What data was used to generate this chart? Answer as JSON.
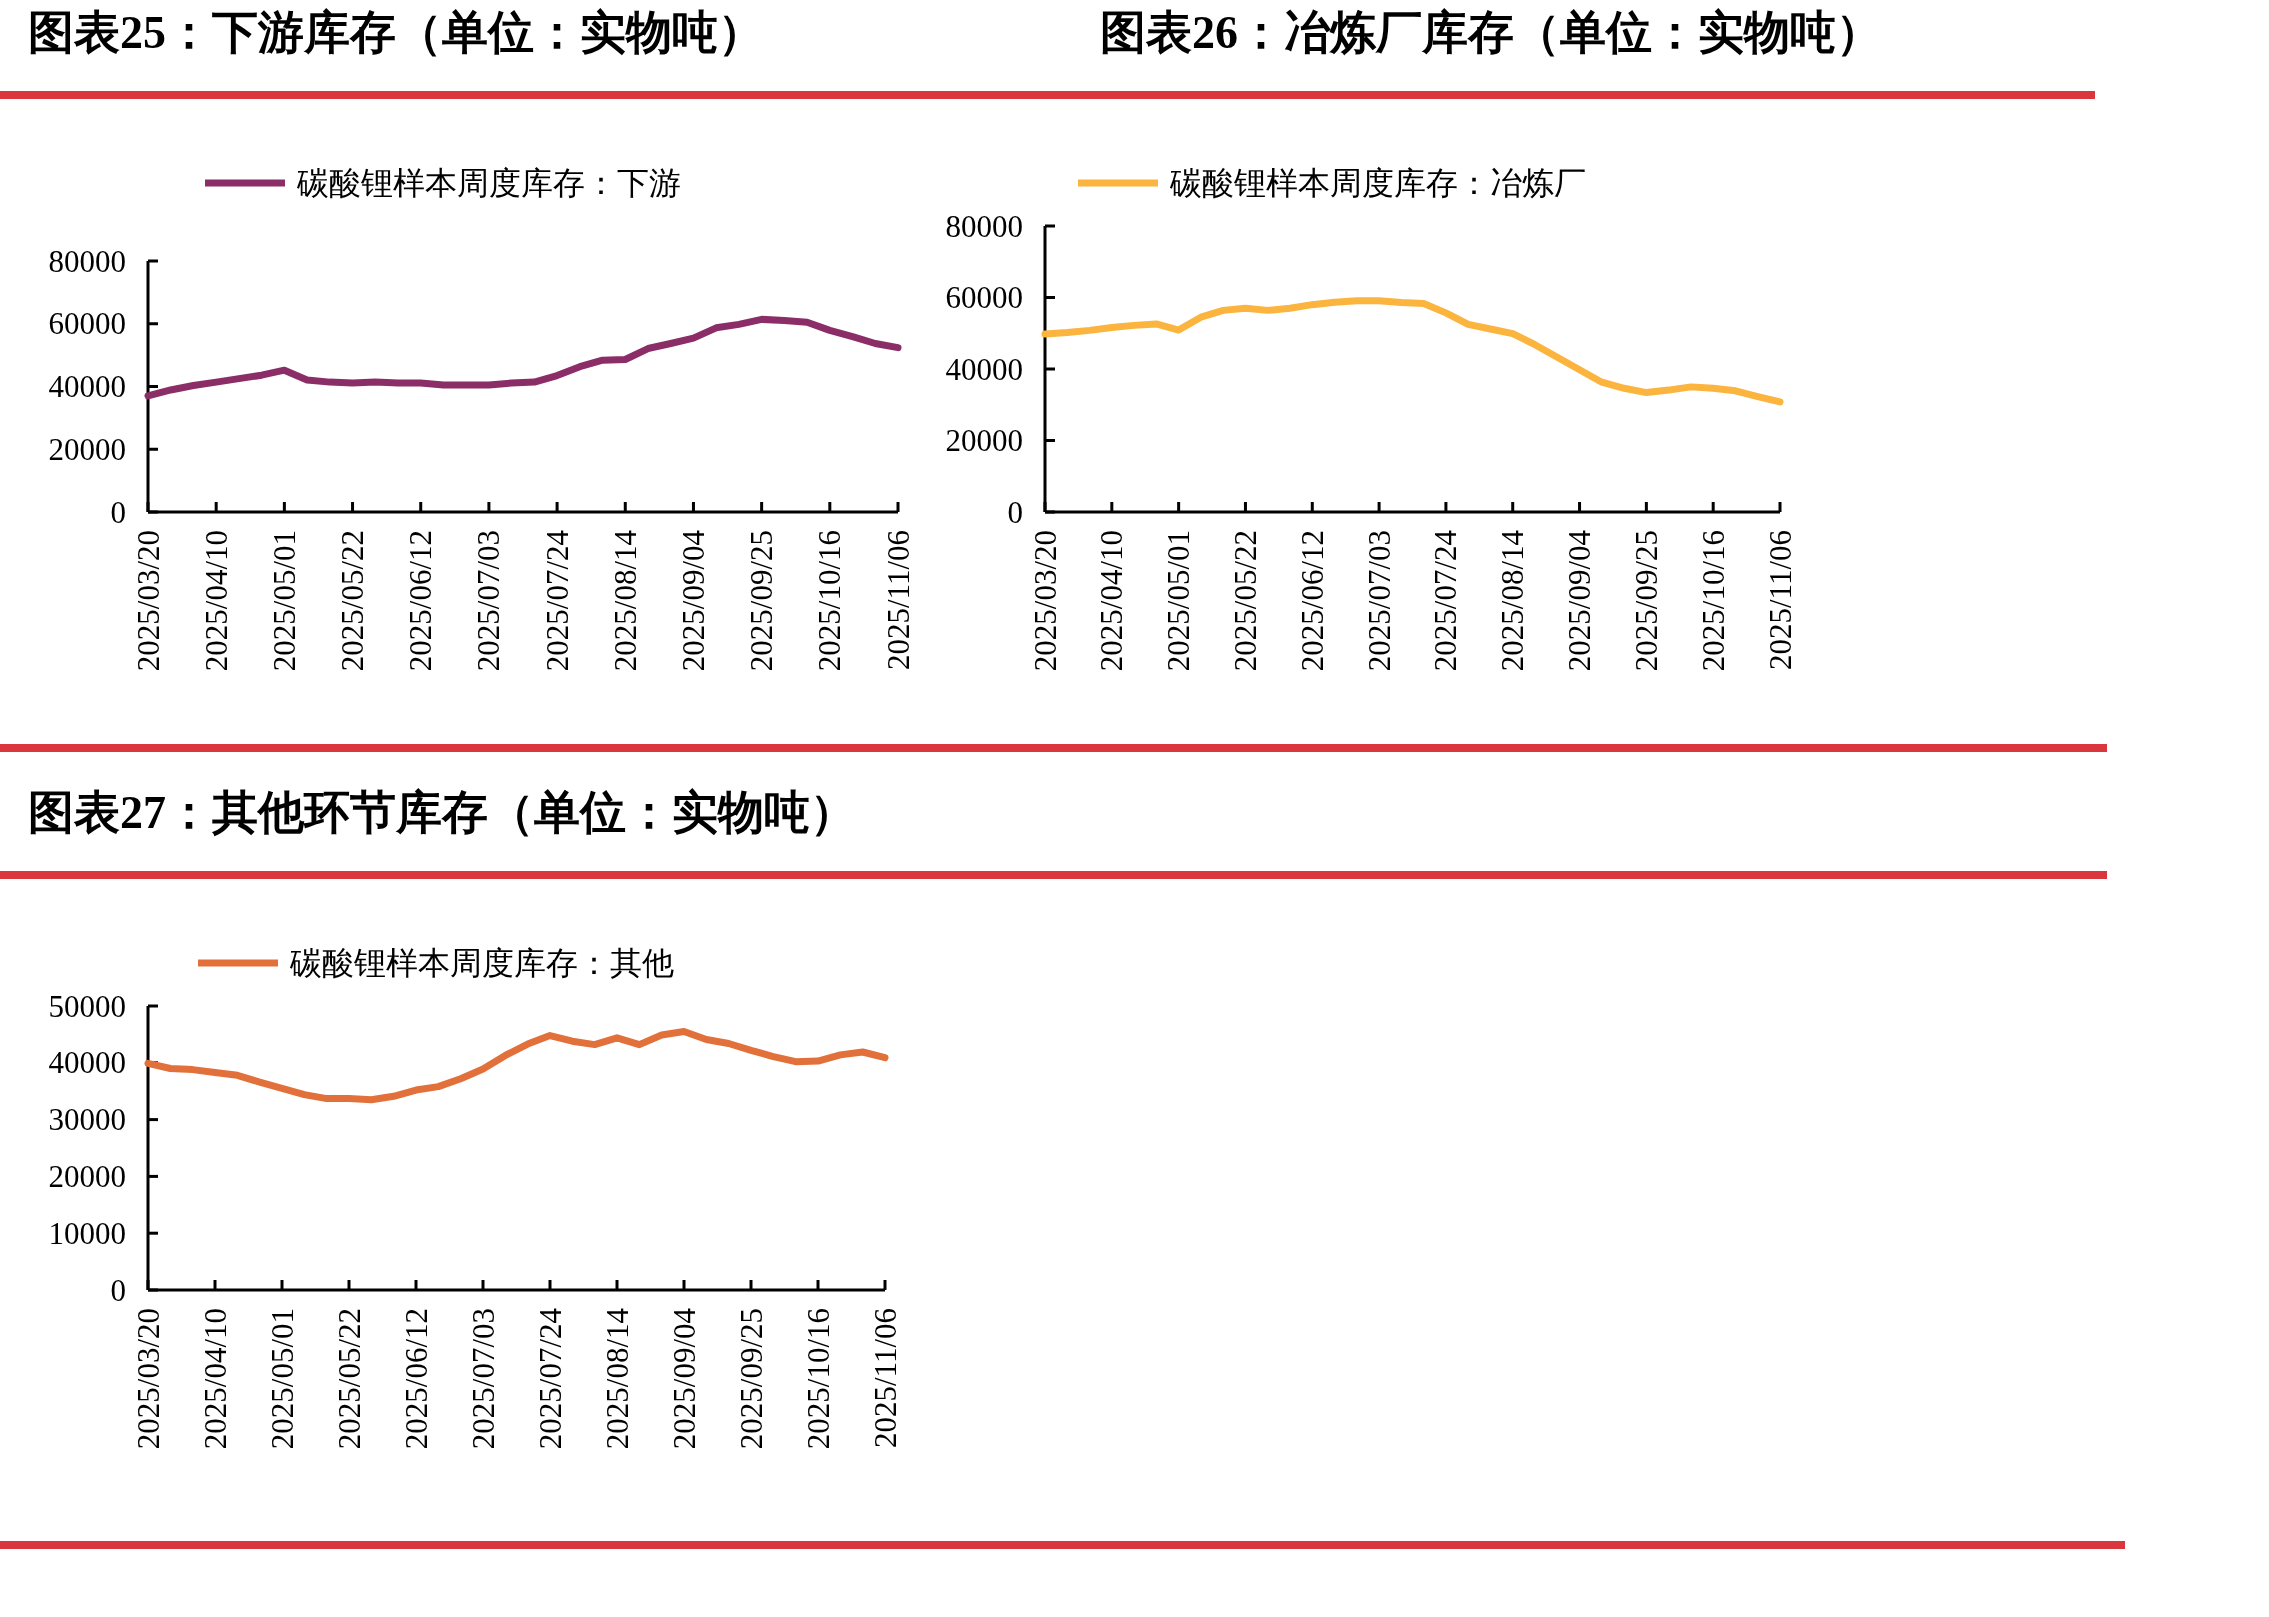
{
  "chart_data": [
    {
      "type": "line",
      "title": "图表25：下游库存（单位：实物吨）",
      "legend": "top",
      "x": [
        "2025-03-20",
        "2025-03-27",
        "2025-04-03",
        "2025-04-10",
        "2025-04-17",
        "2025-04-24",
        "2025-05-01",
        "2025-05-08",
        "2025-05-15",
        "2025-05-22",
        "2025-05-29",
        "2025-06-05",
        "2025-06-12",
        "2025-06-19",
        "2025-06-26",
        "2025-07-03",
        "2025-07-10",
        "2025-07-17",
        "2025-07-24",
        "2025-07-31",
        "2025-08-07",
        "2025-08-14",
        "2025-08-21",
        "2025-08-28",
        "2025-09-04",
        "2025-09-11",
        "2025-09-18",
        "2025-09-25",
        "2025-10-02",
        "2025-10-09",
        "2025-10-16",
        "2025-10-23",
        "2025-10-30",
        "2025-11-06"
      ],
      "series": [
        {
          "name": "碳酸锂样本周度库存：下游",
          "color": "#8b2d66",
          "values": [
            37000,
            38900,
            40300,
            41400,
            42500,
            43600,
            45200,
            42100,
            41400,
            41100,
            41400,
            41100,
            41100,
            40500,
            40500,
            40500,
            41100,
            41400,
            43500,
            46300,
            48400,
            48600,
            52100,
            53700,
            55400,
            58700,
            59800,
            61400,
            61000,
            60500,
            57900,
            55900,
            53700,
            52400
          ]
        }
      ],
      "xlim": [
        "2025-03-20",
        "2025-11-06"
      ],
      "xticks": [
        {
          "value": "2025-03-20",
          "label": "2025/03/20"
        },
        {
          "value": "2025-04-10",
          "label": "2025/04/10"
        },
        {
          "value": "2025-05-01",
          "label": "2025/05/01"
        },
        {
          "value": "2025-05-22",
          "label": "2025/05/22"
        },
        {
          "value": "2025-06-12",
          "label": "2025/06/12"
        },
        {
          "value": "2025-07-03",
          "label": "2025/07/03"
        },
        {
          "value": "2025-07-24",
          "label": "2025/07/24"
        },
        {
          "value": "2025-08-14",
          "label": "2025/08/14"
        },
        {
          "value": "2025-09-04",
          "label": "2025/09/04"
        },
        {
          "value": "2025-09-25",
          "label": "2025/09/25"
        },
        {
          "value": "2025-10-16",
          "label": "2025/10/16"
        },
        {
          "value": "2025-11-06",
          "label": "2025/11/06"
        }
      ],
      "ylim": [
        0,
        80000
      ],
      "yticks": [
        0,
        20000,
        40000,
        60000,
        80000
      ]
    },
    {
      "type": "line",
      "title": "图表26：冶炼厂库存（单位：实物吨）",
      "legend": "top",
      "x": [
        "2025-03-20",
        "2025-03-27",
        "2025-04-03",
        "2025-04-10",
        "2025-04-17",
        "2025-04-24",
        "2025-05-01",
        "2025-05-08",
        "2025-05-15",
        "2025-05-22",
        "2025-05-29",
        "2025-06-05",
        "2025-06-12",
        "2025-06-19",
        "2025-06-26",
        "2025-07-03",
        "2025-07-10",
        "2025-07-17",
        "2025-07-24",
        "2025-07-31",
        "2025-08-07",
        "2025-08-14",
        "2025-08-21",
        "2025-08-28",
        "2025-09-04",
        "2025-09-11",
        "2025-09-18",
        "2025-09-25",
        "2025-10-02",
        "2025-10-09",
        "2025-10-16",
        "2025-10-23",
        "2025-10-30",
        "2025-11-06"
      ],
      "series": [
        {
          "name": "碳酸锂样本周度库存：冶炼厂",
          "color": "#fbb43e",
          "values": [
            49800,
            50200,
            50800,
            51600,
            52200,
            52600,
            50900,
            54500,
            56400,
            57000,
            56400,
            57000,
            58000,
            58700,
            59100,
            59100,
            58600,
            58300,
            55700,
            52500,
            51200,
            49900,
            46800,
            43300,
            39800,
            36300,
            34600,
            33400,
            34100,
            35000,
            34600,
            33900,
            32300,
            30800
          ]
        }
      ],
      "xlim": [
        "2025-03-20",
        "2025-11-06"
      ],
      "xticks": [
        {
          "value": "2025-03-20",
          "label": "2025/03/20"
        },
        {
          "value": "2025-04-10",
          "label": "2025/04/10"
        },
        {
          "value": "2025-05-01",
          "label": "2025/05/01"
        },
        {
          "value": "2025-05-22",
          "label": "2025/05/22"
        },
        {
          "value": "2025-06-12",
          "label": "2025/06/12"
        },
        {
          "value": "2025-07-03",
          "label": "2025/07/03"
        },
        {
          "value": "2025-07-24",
          "label": "2025/07/24"
        },
        {
          "value": "2025-08-14",
          "label": "2025/08/14"
        },
        {
          "value": "2025-09-04",
          "label": "2025/09/04"
        },
        {
          "value": "2025-09-25",
          "label": "2025/09/25"
        },
        {
          "value": "2025-10-16",
          "label": "2025/10/16"
        },
        {
          "value": "2025-11-06",
          "label": "2025/11/06"
        }
      ],
      "ylim": [
        0,
        80000
      ],
      "yticks": [
        0,
        20000,
        40000,
        60000,
        80000
      ]
    },
    {
      "type": "line",
      "title": "图表27：其他环节库存（单位：实物吨）",
      "legend": "top",
      "x": [
        "2025-03-20",
        "2025-03-27",
        "2025-04-03",
        "2025-04-10",
        "2025-04-17",
        "2025-04-24",
        "2025-05-01",
        "2025-05-08",
        "2025-05-15",
        "2025-05-22",
        "2025-05-29",
        "2025-06-05",
        "2025-06-12",
        "2025-06-19",
        "2025-06-26",
        "2025-07-03",
        "2025-07-10",
        "2025-07-17",
        "2025-07-24",
        "2025-07-31",
        "2025-08-07",
        "2025-08-14",
        "2025-08-21",
        "2025-08-28",
        "2025-09-04",
        "2025-09-11",
        "2025-09-18",
        "2025-09-25",
        "2025-10-02",
        "2025-10-09",
        "2025-10-16",
        "2025-10-23",
        "2025-10-30",
        "2025-11-06"
      ],
      "series": [
        {
          "name": "碳酸锂样本周度库存：其他",
          "color": "#e2703a",
          "values": [
            39900,
            39000,
            38800,
            38300,
            37800,
            36600,
            35500,
            34400,
            33700,
            33700,
            33500,
            34100,
            35200,
            35800,
            37200,
            38900,
            41300,
            43300,
            44800,
            43800,
            43200,
            44400,
            43200,
            44900,
            45500,
            44100,
            43400,
            42200,
            41100,
            40200,
            40300,
            41400,
            41900,
            40900
          ]
        }
      ],
      "xlim": [
        "2025-03-20",
        "2025-11-06"
      ],
      "xticks": [
        {
          "value": "2025-03-20",
          "label": "2025/03/20"
        },
        {
          "value": "2025-04-10",
          "label": "2025/04/10"
        },
        {
          "value": "2025-05-01",
          "label": "2025/05/01"
        },
        {
          "value": "2025-05-22",
          "label": "2025/05/22"
        },
        {
          "value": "2025-06-12",
          "label": "2025/06/12"
        },
        {
          "value": "2025-07-03",
          "label": "2025/07/03"
        },
        {
          "value": "2025-07-24",
          "label": "2025/07/24"
        },
        {
          "value": "2025-08-14",
          "label": "2025/08/14"
        },
        {
          "value": "2025-09-04",
          "label": "2025/09/04"
        },
        {
          "value": "2025-09-25",
          "label": "2025/09/25"
        },
        {
          "value": "2025-10-16",
          "label": "2025/10/16"
        },
        {
          "value": "2025-11-06",
          "label": "2025/11/06"
        }
      ],
      "ylim": [
        0,
        50000
      ],
      "yticks": [
        0,
        10000,
        20000,
        30000,
        40000,
        50000
      ]
    }
  ]
}
